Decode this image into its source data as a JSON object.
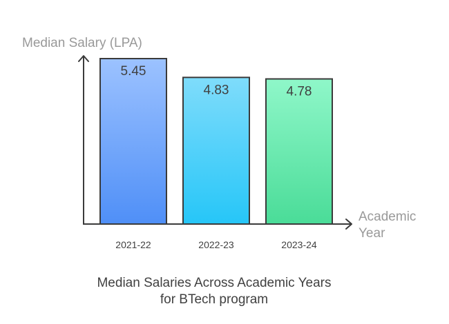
{
  "chart_data": {
    "type": "bar",
    "categories": [
      "2021-22",
      "2022-23",
      "2023-24"
    ],
    "values": [
      5.45,
      4.83,
      4.78
    ],
    "value_labels": [
      "5.45",
      "4.83",
      "4.78"
    ],
    "ylim": [
      0,
      5.45
    ],
    "ylabel": "Median Salary (LPA)",
    "xlabel_lines": [
      "Academic",
      "Year"
    ],
    "title_lines": [
      "Median Salaries Across Academic Years",
      "for BTech program"
    ],
    "bar_colors": [
      {
        "top": "#9cc2ff",
        "bottom": "#4f8ff7"
      },
      {
        "top": "#7fdcfb",
        "bottom": "#26c6f8"
      },
      {
        "top": "#8ff7c9",
        "bottom": "#4adc98"
      }
    ],
    "bar_stroke": "#3a3a3a",
    "axis_color": "#3a3a3a",
    "label_color": "#999999",
    "text_color": "#404040"
  }
}
